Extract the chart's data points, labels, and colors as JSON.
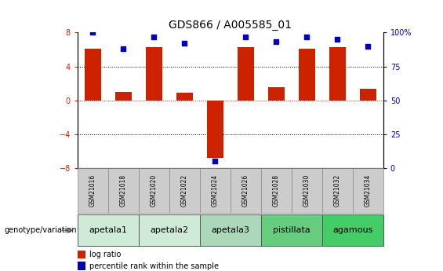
{
  "title": "GDS866 / A005585_01",
  "samples": [
    "GSM21016",
    "GSM21018",
    "GSM21020",
    "GSM21022",
    "GSM21024",
    "GSM21026",
    "GSM21028",
    "GSM21030",
    "GSM21032",
    "GSM21034"
  ],
  "log_ratio": [
    6.1,
    1.0,
    6.3,
    0.9,
    -6.8,
    6.3,
    1.5,
    6.1,
    6.3,
    1.4
  ],
  "percentile_rank": [
    100,
    88,
    97,
    92,
    5,
    97,
    93,
    97,
    95,
    90
  ],
  "groups": [
    {
      "label": "apetala1",
      "start": 0,
      "end": 1,
      "color": "#d0ead8"
    },
    {
      "label": "apetala2",
      "start": 2,
      "end": 3,
      "color": "#d0ead8"
    },
    {
      "label": "apetala3",
      "start": 4,
      "end": 5,
      "color": "#aad8b8"
    },
    {
      "label": "pistillata",
      "start": 6,
      "end": 7,
      "color": "#66cc80"
    },
    {
      "label": "agamous",
      "start": 8,
      "end": 9,
      "color": "#44cc66"
    }
  ],
  "ylim_left": [
    -8,
    8
  ],
  "ylim_right": [
    0,
    100
  ],
  "yticks_left": [
    -8,
    -4,
    0,
    4,
    8
  ],
  "yticks_right": [
    0,
    25,
    50,
    75,
    100
  ],
  "bar_color": "#cc2200",
  "dot_color": "#0000bb",
  "bg_color": "#ffffff",
  "sample_row_color": "#cccccc",
  "title_fontsize": 10,
  "tick_fontsize": 7,
  "sample_fontsize": 5.5,
  "group_label_fontsize": 8,
  "legend_fontsize": 7
}
